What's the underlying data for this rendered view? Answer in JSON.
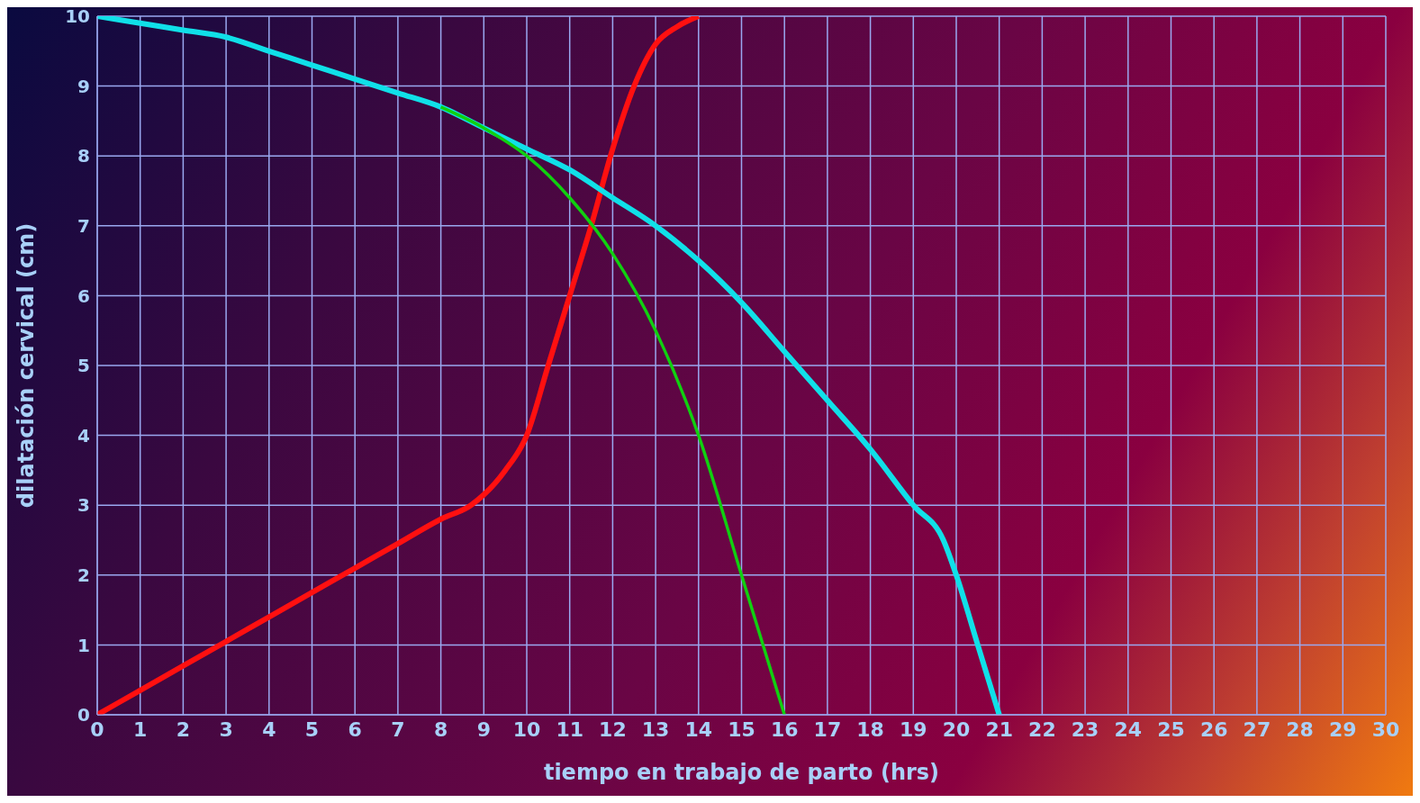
{
  "chart_data": {
    "type": "line",
    "xlabel": "tiempo en trabajo de parto (hrs)",
    "ylabel": "dilatación cervical (cm)",
    "xlim": [
      0,
      30
    ],
    "xticks": [
      0,
      1,
      2,
      3,
      4,
      5,
      6,
      7,
      8,
      9,
      10,
      11,
      12,
      13,
      14,
      15,
      16,
      17,
      18,
      19,
      20,
      21,
      22,
      23,
      24,
      25,
      26,
      27,
      28,
      29,
      30
    ],
    "ylim": [
      0,
      10
    ],
    "yticks": [
      0,
      1,
      2,
      3,
      4,
      5,
      6,
      7,
      8,
      9,
      10
    ],
    "grid": true,
    "marker": "none",
    "line_style": "solid",
    "series": [
      {
        "color": "#ff1010",
        "x": [
          0,
          1,
          2,
          3,
          4,
          5,
          6,
          7,
          8,
          8.7,
          9,
          9.5,
          10,
          10.5,
          11,
          11.5,
          12,
          12.5,
          13,
          13.5,
          14
        ],
        "values": [
          0,
          0.35,
          0.7,
          1.05,
          1.4,
          1.75,
          2.1,
          2.45,
          2.8,
          3.0,
          3.15,
          3.5,
          4,
          5,
          6,
          7,
          8.1,
          9,
          9.6,
          9.85,
          10
        ]
      },
      {
        "color": "#10e0e8",
        "x": [
          0,
          1,
          2,
          3,
          4,
          5,
          6,
          7,
          8,
          9,
          10,
          11,
          12,
          13,
          14,
          15,
          16,
          17,
          18,
          19,
          19.7,
          20,
          20.5,
          21
        ],
        "values": [
          10,
          9.9,
          9.8,
          9.7,
          9.5,
          9.3,
          9.1,
          8.9,
          8.7,
          8.4,
          8.1,
          7.8,
          7.4,
          7.0,
          6.5,
          5.9,
          5.2,
          4.5,
          3.8,
          3.0,
          2.5,
          2.0,
          1.0,
          0
        ]
      },
      {
        "color": "#10d010",
        "x": [
          8,
          9,
          10,
          11,
          12,
          13,
          14,
          15,
          16
        ],
        "values": [
          8.7,
          8.4,
          8.0,
          7.4,
          6.6,
          5.5,
          4,
          2,
          0
        ]
      }
    ]
  }
}
